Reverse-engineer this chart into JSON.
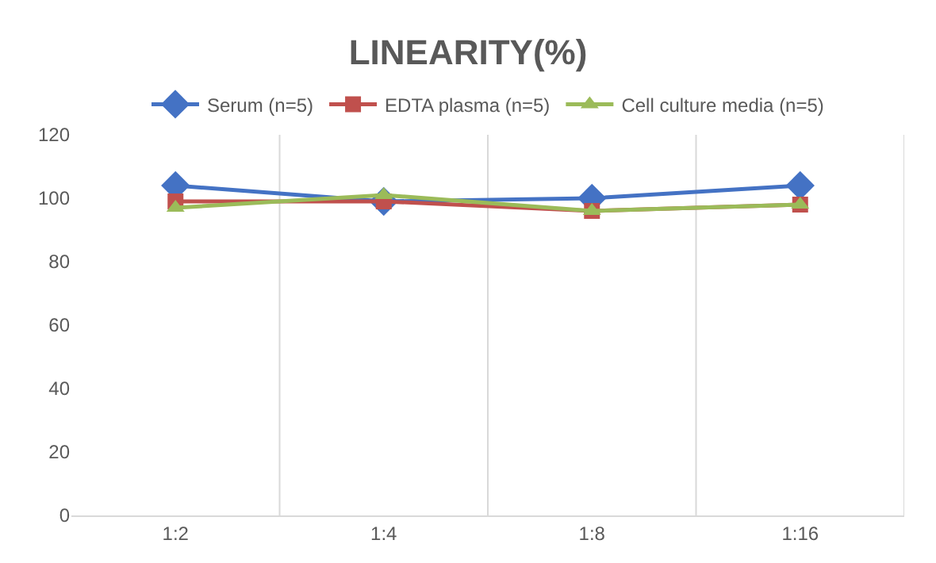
{
  "chart_data": {
    "type": "line",
    "title": "LINEARITY(%)",
    "categories": [
      "1:2",
      "1:4",
      "1:8",
      "1:16"
    ],
    "series": [
      {
        "name": "Serum (n=5)",
        "color": "#4472c4",
        "marker": "diamond",
        "values": [
          104,
          99,
          100,
          104
        ]
      },
      {
        "name": "EDTA plasma (n=5)",
        "color": "#c0504d",
        "marker": "square",
        "values": [
          99,
          99,
          96,
          98
        ]
      },
      {
        "name": "Cell culture media (n=5)",
        "color": "#9bbb59",
        "marker": "triangle",
        "values": [
          97,
          101,
          96,
          98
        ]
      }
    ],
    "ylim": [
      0,
      120
    ],
    "yticks": [
      0,
      20,
      40,
      60,
      80,
      100,
      120
    ],
    "grid": "x",
    "legend": "top"
  }
}
